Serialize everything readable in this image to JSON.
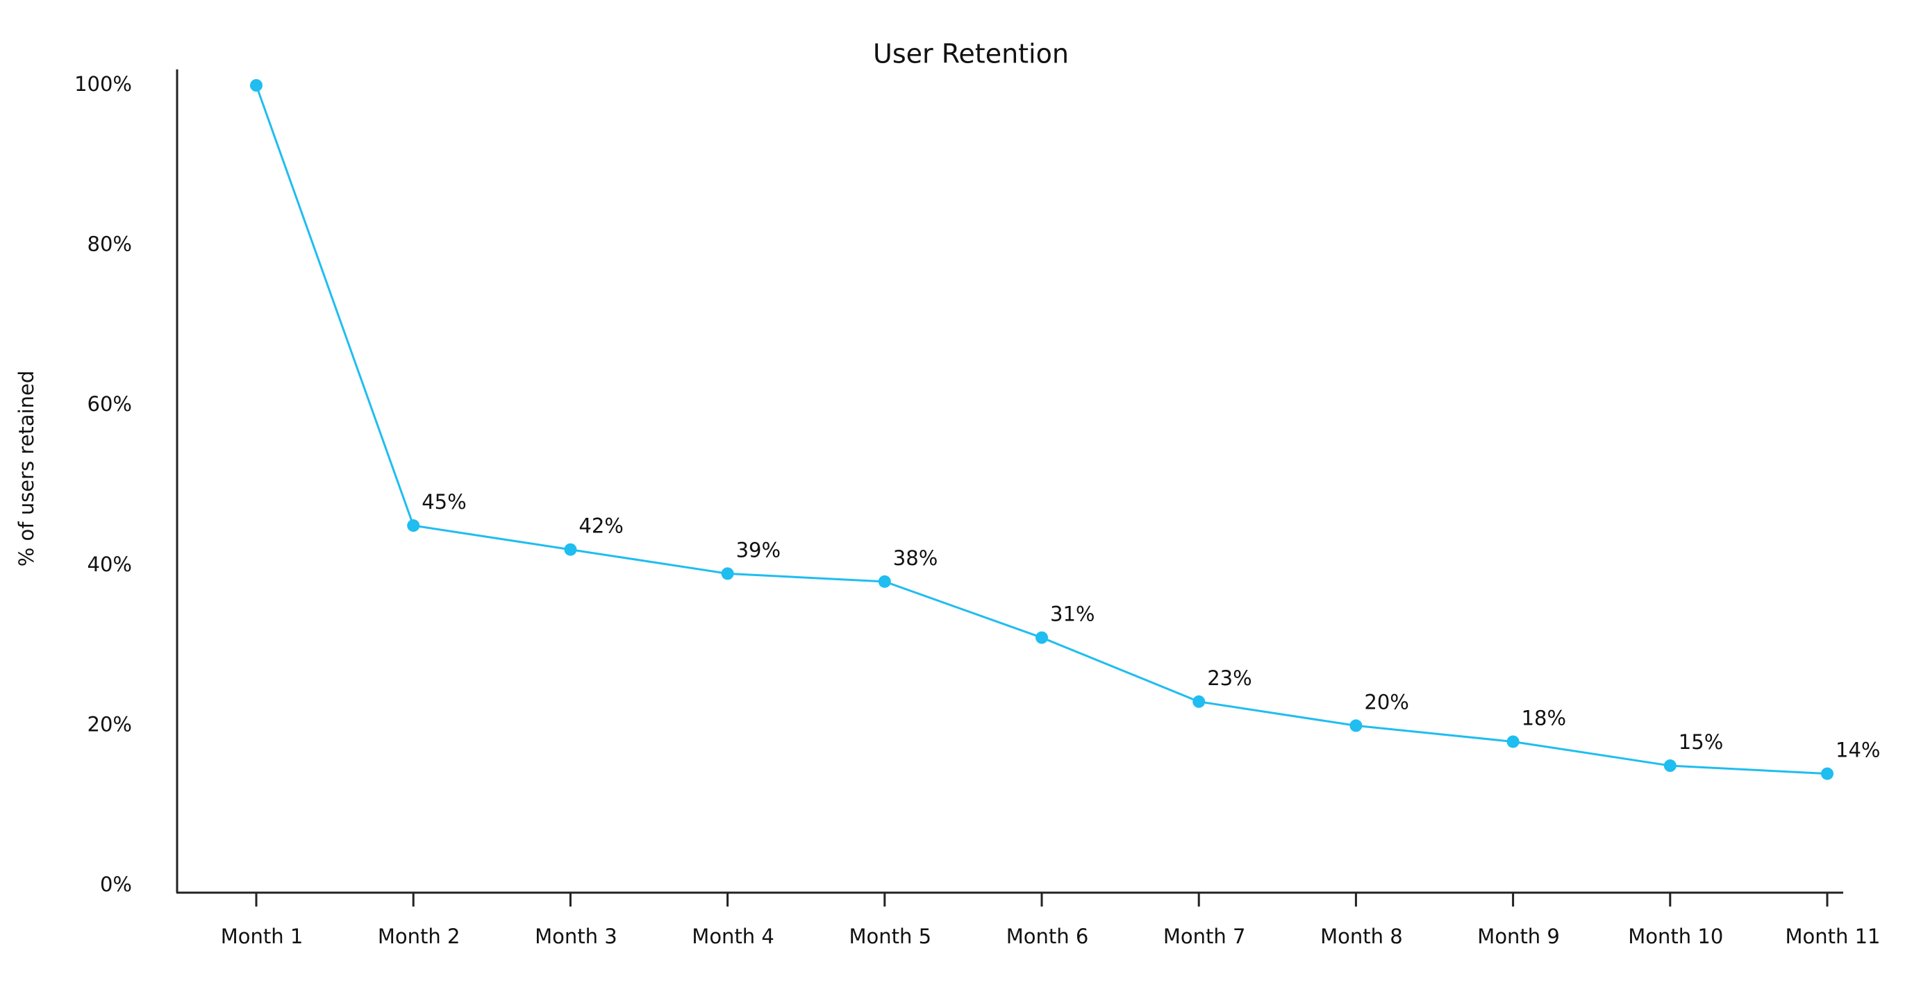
{
  "chart_data": {
    "type": "line",
    "title": "User Retention",
    "y_label": "% of users retained",
    "categories": [
      "Month 1",
      "Month 2",
      "Month 3",
      "Month 4",
      "Month 5",
      "Month 6",
      "Month 7",
      "Month 8",
      "Month 9",
      "Month 10",
      "Month 11"
    ],
    "series": [
      {
        "name": "User Retention",
        "color": "#1fbdf0",
        "values": [
          100,
          45,
          42,
          39,
          38,
          31,
          23,
          20,
          18,
          15,
          14
        ],
        "value_labels": [
          null,
          "45%",
          "42%",
          "39%",
          "38%",
          "31%",
          "23%",
          "20%",
          "18%",
          "15%",
          "14%"
        ]
      }
    ],
    "ylim": [
      0,
      100
    ],
    "yticks": [
      {
        "value": 0,
        "label": "0%"
      },
      {
        "value": 20,
        "label": "20%"
      },
      {
        "value": 40,
        "label": "40%"
      },
      {
        "value": 60,
        "label": "60%"
      },
      {
        "value": 80,
        "label": "80%"
      },
      {
        "value": 100,
        "label": "100%"
      }
    ],
    "grid": false
  }
}
